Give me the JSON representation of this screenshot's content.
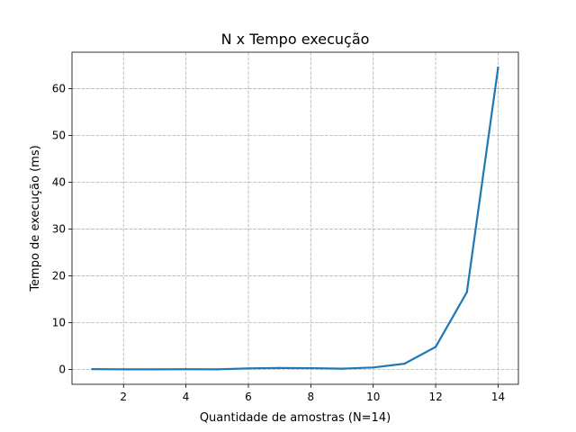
{
  "chart_data": {
    "type": "line",
    "title": "N x Tempo execução",
    "xlabel": "Quantidade de amostras (N=14)",
    "ylabel": "Tempo de execução (ms)",
    "xlim": [
      0.35,
      14.65
    ],
    "ylim": [
      -3.2,
      67.8
    ],
    "xticks": [
      2,
      4,
      6,
      8,
      10,
      12,
      14
    ],
    "yticks": [
      0,
      10,
      20,
      30,
      40,
      50,
      60
    ],
    "grid": true,
    "series": [
      {
        "color": "#1f77b4",
        "x": [
          1,
          2,
          3,
          4,
          5,
          6,
          7,
          8,
          9,
          10,
          11,
          12,
          13,
          14
        ],
        "y": [
          0.05,
          0.0,
          0.0,
          0.02,
          0.0,
          0.2,
          0.3,
          0.25,
          0.15,
          0.4,
          1.2,
          4.8,
          16.5,
          64.5
        ]
      }
    ]
  }
}
